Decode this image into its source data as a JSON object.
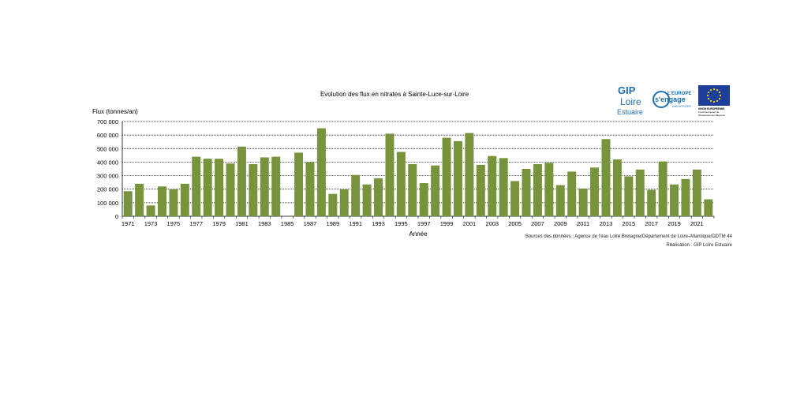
{
  "chart_data": {
    "type": "bar",
    "title": "Evolution des flux en nitrates à Sainte-Luce-sur-Loire",
    "ylabel": "Flux (tonnes/an)",
    "xlabel": "Année",
    "ylim": [
      0,
      700000
    ],
    "yticks": [
      0,
      100000,
      200000,
      300000,
      400000,
      500000,
      600000,
      700000
    ],
    "ytick_labels": [
      "0",
      "100 000",
      "200 000",
      "300 000",
      "400 000",
      "500 000",
      "600 000",
      "700 000"
    ],
    "grid": true,
    "bar_color": "#77933c",
    "categories": [
      "1971",
      "1972",
      "1973",
      "1974",
      "1975",
      "1976",
      "1977",
      "1978",
      "1979",
      "1980",
      "1981",
      "1982",
      "1983",
      "1984",
      "1985",
      "1986",
      "1987",
      "1988",
      "1989",
      "1990",
      "1991",
      "1992",
      "1993",
      "1994",
      "1995",
      "1996",
      "1997",
      "1998",
      "1999",
      "2000",
      "2001",
      "2002",
      "2003",
      "2004",
      "2005",
      "2006",
      "2007",
      "2008",
      "2009",
      "2010",
      "2011",
      "2012",
      "2013",
      "2014",
      "2015",
      "2016",
      "2017",
      "2018",
      "2019",
      "2020",
      "2021",
      "2022"
    ],
    "xtick_labels": [
      "1971",
      "1973",
      "1975",
      "1977",
      "1979",
      "1981",
      "1983",
      "1985",
      "1987",
      "1989",
      "1991",
      "1993",
      "1995",
      "1997",
      "1999",
      "2001",
      "2003",
      "2005",
      "2007",
      "2009",
      "2011",
      "2013",
      "2015",
      "2017",
      "2019",
      "2021"
    ],
    "values": [
      185000,
      240000,
      80000,
      220000,
      200000,
      240000,
      440000,
      425000,
      425000,
      390000,
      515000,
      385000,
      435000,
      440000,
      0,
      470000,
      400000,
      650000,
      165000,
      200000,
      305000,
      235000,
      280000,
      610000,
      475000,
      385000,
      245000,
      375000,
      580000,
      555000,
      615000,
      380000,
      445000,
      430000,
      260000,
      350000,
      385000,
      395000,
      230000,
      330000,
      205000,
      360000,
      570000,
      420000,
      295000,
      345000,
      195000,
      405000,
      235000,
      275000,
      345000,
      125000
    ]
  },
  "sources": "Sources des données : Agence de l'eau Loire Bretagne/Département de Loire-Atlantique/DDTM 44",
  "credit": "Réalisation : GIP Loire Estuaire",
  "logos": {
    "gip_line1": "GIP",
    "gip_line2": "Loire",
    "gip_line3": "Estuaire",
    "europe_line1": "L'EUROPE",
    "europe_line2": "s'engage",
    "europe_line3": "avec le FEDER",
    "ue_line1": "UNION EUROPÉENNE",
    "ue_line2": "Fonds Européen de",
    "ue_line3": "Développement Régional",
    "gip_color": "#1f6fb2",
    "europe_color": "#1f6fb2",
    "ue_flag_color": "#1d3f9a",
    "ue_star_color": "#ffdd00"
  }
}
